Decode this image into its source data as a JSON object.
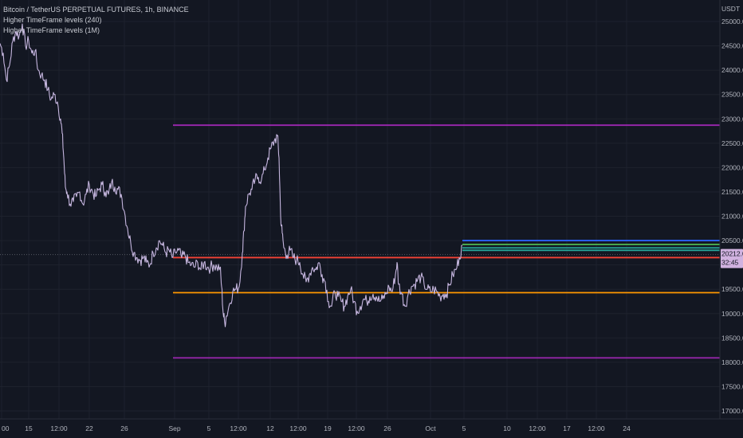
{
  "legend": {
    "symbol": "Bitcoin / TetherUS PERPETUAL FUTURES, 1h, BINANCE",
    "indicator_1": "Higher TimeFrame levels (240)",
    "indicator_2": "Higher TimeFrame levels (1M)"
  },
  "price_axis": {
    "currency": "USDT",
    "ticks": [
      "25000.0",
      "24500.0",
      "24000.0",
      "23500.0",
      "23000.0",
      "22500.0",
      "22000.0",
      "21500.0",
      "21000.0",
      "20500.0",
      "20000.0",
      "19500.0",
      "19000.0",
      "18500.0",
      "18000.0",
      "17500.0",
      "17000.0"
    ],
    "last_price": "20212.0",
    "countdown": "32:45"
  },
  "time_axis": {
    "ticks": [
      "00",
      "15",
      "12:00",
      "22",
      "26",
      "Sep",
      "5",
      "12:00",
      "12",
      "12:00",
      "19",
      "12:00",
      "26",
      "Oct",
      "5",
      "10",
      "12:00",
      "17",
      "12:00",
      "24"
    ]
  },
  "colors": {
    "background": "#131722",
    "price_line": "#c2c5cf",
    "purple": "#9c27b0",
    "red": "#f44336",
    "orange": "#ff9800",
    "blue": "#2962ff",
    "green": "#4caf50",
    "teal": "#26a69a"
  },
  "chart_data": {
    "type": "line",
    "series": [],
    "ylim": [
      16900,
      25300
    ],
    "price_path": [
      [
        0,
        24550
      ],
      [
        4,
        24350
      ],
      [
        8,
        23800
      ],
      [
        12,
        24100
      ],
      [
        16,
        24600
      ],
      [
        20,
        24800
      ],
      [
        24,
        24700
      ],
      [
        28,
        24950
      ],
      [
        32,
        24500
      ],
      [
        36,
        24600
      ],
      [
        40,
        24350
      ],
      [
        44,
        24400
      ],
      [
        48,
        24000
      ],
      [
        52,
        23900
      ],
      [
        56,
        23800
      ],
      [
        60,
        23600
      ],
      [
        64,
        23400
      ],
      [
        68,
        23500
      ],
      [
        72,
        23350
      ],
      [
        76,
        23000
      ],
      [
        78,
        22700
      ],
      [
        80,
        22200
      ],
      [
        82,
        21600
      ],
      [
        84,
        21500
      ],
      [
        88,
        21250
      ],
      [
        92,
        21300
      ],
      [
        96,
        21400
      ],
      [
        100,
        21500
      ],
      [
        104,
        21250
      ],
      [
        108,
        21450
      ],
      [
        112,
        21650
      ],
      [
        116,
        21500
      ],
      [
        120,
        21400
      ],
      [
        124,
        21550
      ],
      [
        128,
        21650
      ],
      [
        132,
        21500
      ],
      [
        136,
        21450
      ],
      [
        140,
        21700
      ],
      [
        144,
        21600
      ],
      [
        148,
        21550
      ],
      [
        152,
        21450
      ],
      [
        156,
        21100
      ],
      [
        160,
        20750
      ],
      [
        164,
        20450
      ],
      [
        168,
        20250
      ],
      [
        172,
        20150
      ],
      [
        176,
        20100
      ],
      [
        180,
        20150
      ],
      [
        184,
        20050
      ],
      [
        188,
        20000
      ],
      [
        192,
        20250
      ],
      [
        196,
        20350
      ],
      [
        200,
        20500
      ],
      [
        204,
        20400
      ],
      [
        208,
        20250
      ],
      [
        212,
        20300
      ],
      [
        216,
        20150
      ],
      [
        220,
        20250
      ],
      [
        224,
        20300
      ],
      [
        228,
        20150
      ],
      [
        232,
        20200
      ],
      [
        236,
        20050
      ],
      [
        240,
        20000
      ],
      [
        244,
        19950
      ],
      [
        248,
        20050
      ],
      [
        252,
        19900
      ],
      [
        256,
        20050
      ],
      [
        260,
        19950
      ],
      [
        264,
        19950
      ],
      [
        268,
        20000
      ],
      [
        272,
        19950
      ],
      [
        276,
        19950
      ],
      [
        278,
        19550
      ],
      [
        280,
        19000
      ],
      [
        282,
        18800
      ],
      [
        284,
        18950
      ],
      [
        288,
        19200
      ],
      [
        292,
        19450
      ],
      [
        296,
        19500
      ],
      [
        300,
        19550
      ],
      [
        304,
        20250
      ],
      [
        306,
        20700
      ],
      [
        308,
        21200
      ],
      [
        312,
        21450
      ],
      [
        316,
        21550
      ],
      [
        320,
        21750
      ],
      [
        324,
        21800
      ],
      [
        328,
        21750
      ],
      [
        332,
        21950
      ],
      [
        336,
        22200
      ],
      [
        340,
        22400
      ],
      [
        344,
        22550
      ],
      [
        348,
        22650
      ],
      [
        350,
        22200
      ],
      [
        352,
        21000
      ],
      [
        354,
        20650
      ],
      [
        356,
        20350
      ],
      [
        360,
        20200
      ],
      [
        364,
        20300
      ],
      [
        368,
        20150
      ],
      [
        372,
        20100
      ],
      [
        376,
        20050
      ],
      [
        380,
        19800
      ],
      [
        384,
        19650
      ],
      [
        388,
        19800
      ],
      [
        392,
        19950
      ],
      [
        396,
        19900
      ],
      [
        400,
        20050
      ],
      [
        404,
        19800
      ],
      [
        408,
        19650
      ],
      [
        412,
        19250
      ],
      [
        416,
        19150
      ],
      [
        420,
        19450
      ],
      [
        424,
        19350
      ],
      [
        428,
        19250
      ],
      [
        432,
        19150
      ],
      [
        436,
        19350
      ],
      [
        440,
        19500
      ],
      [
        444,
        19250
      ],
      [
        448,
        19050
      ],
      [
        452,
        19150
      ],
      [
        456,
        19300
      ],
      [
        460,
        19250
      ],
      [
        464,
        19350
      ],
      [
        468,
        19400
      ],
      [
        472,
        19350
      ],
      [
        476,
        19250
      ],
      [
        480,
        19300
      ],
      [
        484,
        19400
      ],
      [
        488,
        19550
      ],
      [
        492,
        19450
      ],
      [
        496,
        19800
      ],
      [
        498,
        20050
      ],
      [
        500,
        19600
      ],
      [
        504,
        19400
      ],
      [
        508,
        19150
      ],
      [
        512,
        19400
      ],
      [
        516,
        19550
      ],
      [
        520,
        19600
      ],
      [
        524,
        19700
      ],
      [
        528,
        19750
      ],
      [
        532,
        19600
      ],
      [
        536,
        19500
      ],
      [
        540,
        19450
      ],
      [
        544,
        19500
      ],
      [
        548,
        19450
      ],
      [
        552,
        19350
      ],
      [
        556,
        19400
      ],
      [
        560,
        19400
      ],
      [
        564,
        19600
      ],
      [
        568,
        19800
      ],
      [
        572,
        19900
      ],
      [
        576,
        20150
      ],
      [
        580,
        20400
      ]
    ],
    "levels": [
      {
        "price": 22870,
        "color": "purple",
        "x_start": 217
      },
      {
        "price": 20500,
        "color": "blue",
        "x_start": 580
      },
      {
        "price": 20420,
        "color": "green",
        "x_start": 580
      },
      {
        "price": 20350,
        "color": "teal",
        "x_start": 580
      },
      {
        "price": 20300,
        "color": "teal",
        "x_start": 580
      },
      {
        "price": 20212,
        "color": "price_line",
        "x_start": 0
      },
      {
        "price": 20150,
        "color": "red",
        "x_start": 217
      },
      {
        "price": 19430,
        "color": "orange",
        "x_start": 217
      },
      {
        "price": 18090,
        "color": "purple",
        "x_start": 217
      }
    ]
  }
}
